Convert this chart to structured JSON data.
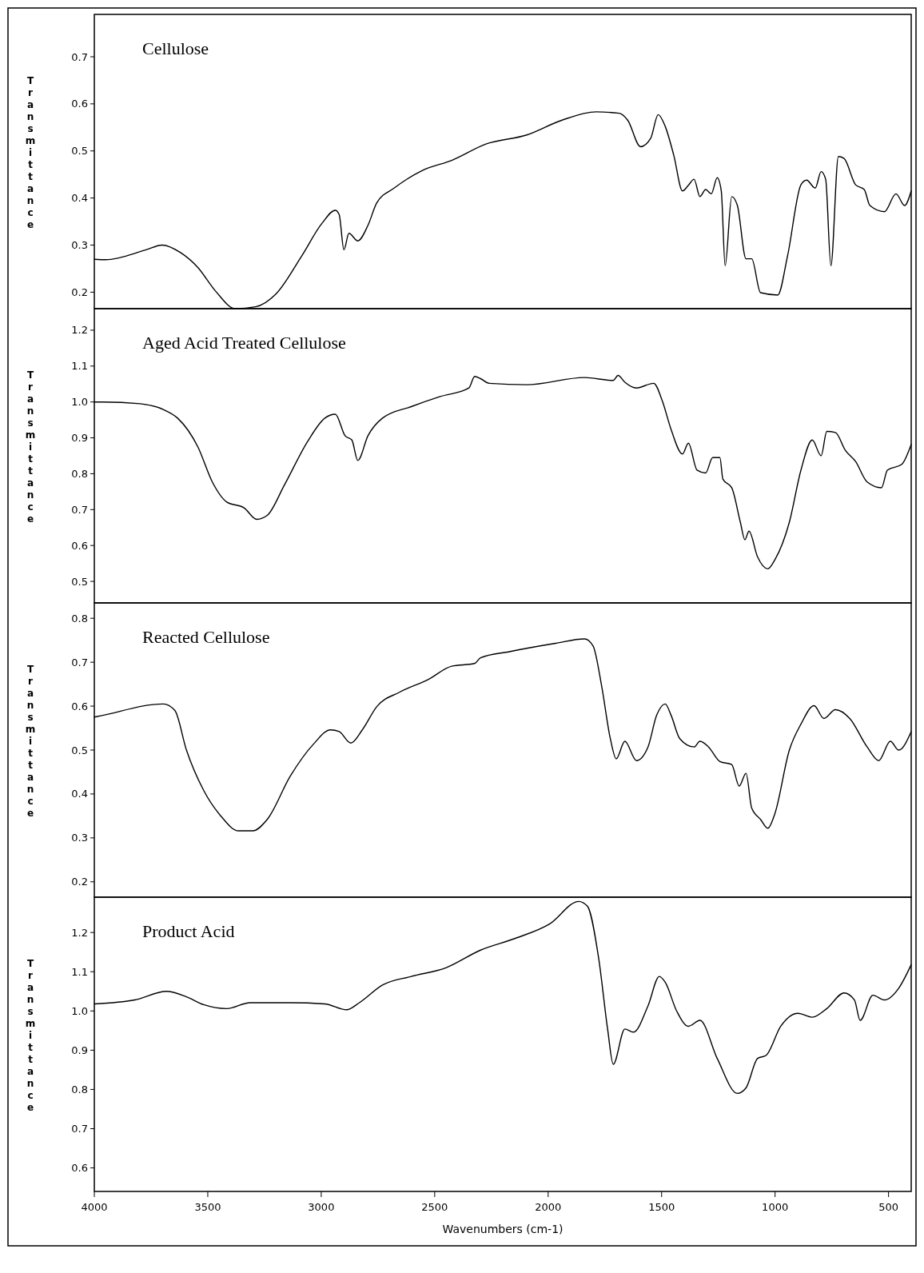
{
  "chart_data": [
    {
      "type": "line",
      "title": "Cellulose",
      "ylabel": "Transmittance",
      "xlim": [
        4000,
        400
      ],
      "ylim": [
        0.165,
        0.79
      ],
      "yticks": [
        0.2,
        0.3,
        0.4,
        0.5,
        0.6,
        0.7
      ],
      "tick_labels": "y",
      "grid": false,
      "x": [
        4000,
        3950,
        3772,
        3701,
        3620,
        3543,
        3467,
        3378,
        3289,
        3200,
        3086,
        2997,
        2938,
        2921,
        2900,
        2878,
        2839,
        2794,
        2755,
        2679,
        2552,
        2425,
        2272,
        2094,
        1941,
        1789,
        1687,
        1649,
        1593,
        1548,
        1515,
        1484,
        1446,
        1408,
        1382,
        1357,
        1331,
        1306,
        1281,
        1255,
        1237,
        1220,
        1191,
        1166,
        1128,
        1103,
        1064,
        988,
        945,
        886,
        861,
        823,
        797,
        777,
        754,
        721,
        696,
        645,
        607,
        582,
        518,
        467,
        429,
        400
      ],
      "series": [
        {
          "color": "#000000",
          "values": [
            0.27,
            0.269,
            0.29,
            0.3,
            0.284,
            0.252,
            0.203,
            0.165,
            0.169,
            0.196,
            0.277,
            0.346,
            0.374,
            0.365,
            0.29,
            0.325,
            0.309,
            0.342,
            0.39,
            0.421,
            0.459,
            0.48,
            0.515,
            0.534,
            0.565,
            0.583,
            0.58,
            0.565,
            0.509,
            0.527,
            0.577,
            0.552,
            0.49,
            0.415,
            0.427,
            0.44,
            0.403,
            0.418,
            0.409,
            0.443,
            0.415,
            0.256,
            0.403,
            0.384,
            0.271,
            0.271,
            0.199,
            0.194,
            0.277,
            0.428,
            0.438,
            0.421,
            0.456,
            0.44,
            0.256,
            0.488,
            0.484,
            0.428,
            0.418,
            0.384,
            0.371,
            0.409,
            0.384,
            0.415
          ]
        }
      ]
    },
    {
      "type": "line",
      "title": "Aged Acid Treated Cellulose",
      "ylabel": "Transmittance",
      "xlim": [
        4000,
        400
      ],
      "ylim": [
        0.44,
        1.26
      ],
      "yticks": [
        0.5,
        0.6,
        0.7,
        0.8,
        0.9,
        {
          "value": 1,
          "label": "1.0"
        },
        1.1,
        1.2
      ],
      "tick_labels": "y",
      "grid": false,
      "x": [
        4000,
        3963,
        3798,
        3696,
        3633,
        3543,
        3480,
        3416,
        3340,
        3284,
        3238,
        3162,
        3060,
        2984,
        2938,
        2895,
        2865,
        2839,
        2794,
        2730,
        2603,
        2476,
        2349,
        2324,
        2298,
        2260,
        2094,
        1840,
        1713,
        1692,
        1662,
        1611,
        1535,
        1497,
        1458,
        1408,
        1382,
        1344,
        1306,
        1275,
        1243,
        1230,
        1191,
        1153,
        1133,
        1115,
        1077,
        1032,
        1001,
        937,
        886,
        836,
        797,
        772,
        734,
        691,
        645,
        594,
        531,
        505,
        442,
        400
      ],
      "series": [
        {
          "color": "#000000",
          "values": [
            1.0,
            1.0,
            0.995,
            0.979,
            0.955,
            0.874,
            0.777,
            0.721,
            0.705,
            0.673,
            0.684,
            0.769,
            0.89,
            0.955,
            0.966,
            0.906,
            0.894,
            0.837,
            0.906,
            0.955,
            0.987,
            1.015,
            1.039,
            1.071,
            1.065,
            1.052,
            1.048,
            1.068,
            1.06,
            1.074,
            1.055,
            1.039,
            1.052,
            1.003,
            0.923,
            0.855,
            0.885,
            0.81,
            0.802,
            0.845,
            0.845,
            0.785,
            0.761,
            0.665,
            0.616,
            0.64,
            0.568,
            0.535,
            0.56,
            0.665,
            0.81,
            0.894,
            0.85,
            0.918,
            0.915,
            0.866,
            0.834,
            0.777,
            0.761,
            0.81,
            0.826,
            0.882
          ]
        }
      ]
    },
    {
      "type": "line",
      "title": "Reacted Cellulose",
      "ylabel": "Transmittance",
      "xlim": [
        4000,
        400
      ],
      "ylim": [
        0.165,
        0.835
      ],
      "yticks": [
        0.2,
        0.3,
        0.4,
        0.5,
        0.6,
        0.7,
        0.8
      ],
      "tick_labels": "y",
      "grid": false,
      "x": [
        4000,
        3971,
        3696,
        3645,
        3594,
        3518,
        3441,
        3365,
        3302,
        3238,
        3136,
        3035,
        2959,
        2921,
        2870,
        2819,
        2755,
        2654,
        2527,
        2425,
        2324,
        2298,
        2171,
        1967,
        1840,
        1802,
        1764,
        1726,
        1700,
        1662,
        1611,
        1560,
        1522,
        1484,
        1458,
        1420,
        1357,
        1331,
        1293,
        1243,
        1191,
        1158,
        1128,
        1103,
        1064,
        1032,
        1001,
        937,
        886,
        828,
        785,
        734,
        671,
        594,
        543,
        492,
        455,
        400
      ],
      "series": [
        {
          "color": "#000000",
          "values": [
            0.575,
            0.578,
            0.605,
            0.59,
            0.5,
            0.408,
            0.349,
            0.316,
            0.316,
            0.342,
            0.441,
            0.513,
            0.546,
            0.542,
            0.516,
            0.546,
            0.599,
            0.632,
            0.661,
            0.691,
            0.697,
            0.71,
            0.724,
            0.743,
            0.753,
            0.737,
            0.645,
            0.526,
            0.48,
            0.52,
            0.476,
            0.507,
            0.579,
            0.605,
            0.579,
            0.526,
            0.507,
            0.52,
            0.507,
            0.474,
            0.467,
            0.418,
            0.447,
            0.368,
            0.342,
            0.322,
            0.355,
            0.5,
            0.559,
            0.601,
            0.572,
            0.592,
            0.572,
            0.507,
            0.476,
            0.52,
            0.5,
            0.542
          ]
        }
      ]
    },
    {
      "type": "line",
      "title": "Product Acid",
      "ylabel": "Transmittance",
      "xlabel": "Wavenumbers (cm-1)",
      "xlim": [
        4000,
        400
      ],
      "xticks": [
        4000,
        3500,
        3000,
        2500,
        2000,
        1500,
        1000,
        500
      ],
      "ylim": [
        0.54,
        1.29
      ],
      "yticks": [
        0.6,
        0.7,
        0.8,
        0.9,
        {
          "value": 1,
          "label": "1.0"
        },
        1.1,
        1.2
      ],
      "grid": false,
      "x": [
        4000,
        3822,
        3682,
        3594,
        3518,
        3416,
        3314,
        3136,
        2984,
        2888,
        2832,
        2730,
        2603,
        2451,
        2298,
        2145,
        1993,
        1865,
        1827,
        1777,
        1738,
        1713,
        1662,
        1624,
        1560,
        1510,
        1484,
        1433,
        1382,
        1331,
        1255,
        1166,
        1128,
        1077,
        1039,
        975,
        899,
        836,
        772,
        696,
        650,
        625,
        569,
        518,
        455,
        400
      ],
      "series": [
        {
          "color": "#000000",
          "values": [
            1.018,
            1.028,
            1.05,
            1.036,
            1.016,
            1.006,
            1.021,
            1.021,
            1.018,
            1.003,
            1.021,
            1.066,
            1.088,
            1.11,
            1.155,
            1.185,
            1.222,
            1.279,
            1.267,
            1.133,
            0.954,
            0.864,
            0.954,
            0.946,
            1.013,
            1.088,
            1.073,
            0.999,
            0.961,
            0.976,
            0.879,
            0.79,
            0.804,
            0.879,
            0.887,
            0.961,
            0.994,
            0.984,
            1.006,
            1.046,
            1.028,
            0.976,
            1.04,
            1.028,
            1.058,
            1.118
          ]
        }
      ]
    }
  ]
}
